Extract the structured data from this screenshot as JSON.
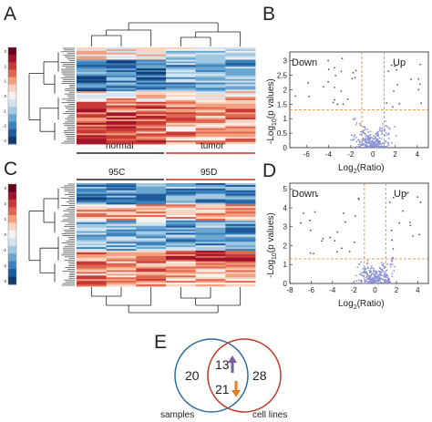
{
  "panels": {
    "a": "A",
    "b": "B",
    "c": "C",
    "d": "D",
    "e": "E"
  },
  "colorbar": {
    "ticks": [
      "3",
      "2",
      "1",
      "0",
      "-1",
      "-2",
      "-3"
    ],
    "colors": [
      "#67001f",
      "#a1142a",
      "#c83a37",
      "#e0674f",
      "#f2a07f",
      "#fbd3bf",
      "#f4f1ef",
      "#d3e4f0",
      "#a2c9e1",
      "#6aa6cf",
      "#3c82bc",
      "#1f5a9c",
      "#123a6e"
    ]
  },
  "heatmap_a": {
    "groups": [
      {
        "label": "normal",
        "color": "#222222"
      },
      {
        "label": "tumor",
        "color": "#c0392b"
      }
    ],
    "columns": 6
  },
  "heatmap_c": {
    "groups": [
      {
        "label": "95C",
        "color": "#222222"
      },
      {
        "label": "95D",
        "color": "#c0392b"
      }
    ],
    "columns": 6
  },
  "volcano_b": {
    "down_label": "Down",
    "up_label": "Up",
    "xlabel": "Log",
    "xlabel_sub": "2",
    "xlabel_tail": "(Ratio)",
    "ylabel": "-Log",
    "ylabel_sub": "10",
    "ylabel_tail": "(p values)",
    "xticks": [
      "-6",
      "-4",
      "-2",
      "0",
      "2",
      "4"
    ],
    "yticks": [
      "0",
      "0.5",
      "1",
      "1.5",
      "2",
      "2.5",
      "3"
    ],
    "xlim": [
      -7.5,
      5
    ],
    "ylim": [
      0,
      3.3
    ],
    "vlines": [
      -1,
      1
    ],
    "hline": 1.3
  },
  "volcano_d": {
    "down_label": "Down",
    "up_label": "Up",
    "xlabel": "Log",
    "xlabel_sub": "2",
    "xlabel_tail": "(Ratio)",
    "ylabel": "-Log",
    "ylabel_sub": "10",
    "ylabel_tail": "(p values)",
    "xticks": [
      "-8",
      "-6",
      "-4",
      "-2",
      "0",
      "2",
      "4"
    ],
    "yticks": [
      "0",
      "1",
      "2",
      "3",
      "4",
      "5"
    ],
    "xlim": [
      -8,
      5
    ],
    "ylim": [
      0,
      5.3
    ],
    "vlines": [
      -1,
      1
    ],
    "hline": 1.3
  },
  "venn": {
    "left_only": "20",
    "overlap_up": "13",
    "overlap_down": "21",
    "right_only": "28",
    "left_label": "samples",
    "right_label": "cell lines",
    "left_color": "#2e6da4",
    "right_color": "#c0392b",
    "up_arrow_color": "#7b5ea7",
    "down_arrow_color": "#e67e22"
  }
}
